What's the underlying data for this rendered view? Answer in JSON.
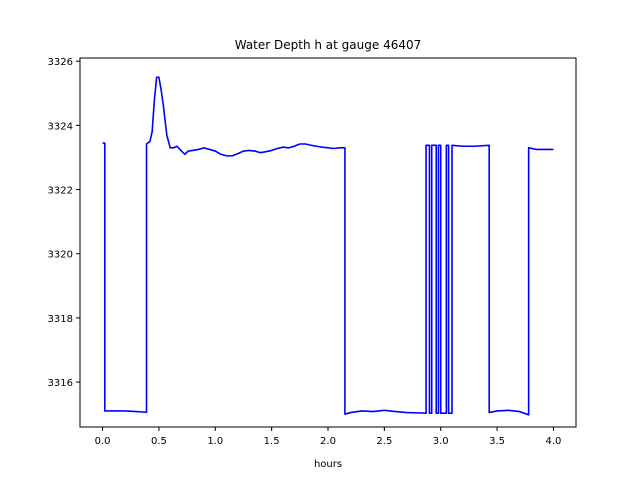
{
  "chart_data": {
    "type": "line",
    "title": "Water Depth h at gauge 46407",
    "xlabel": "hours",
    "ylabel": "",
    "xlim": [
      -0.2,
      4.2
    ],
    "ylim": [
      3314.6,
      3326.1
    ],
    "xticks": [
      0.0,
      0.5,
      1.0,
      1.5,
      2.0,
      2.5,
      3.0,
      3.5,
      4.0
    ],
    "xtick_labels": [
      "0.0",
      "0.5",
      "1.0",
      "1.5",
      "2.0",
      "2.5",
      "3.0",
      "3.5",
      "4.0"
    ],
    "yticks": [
      3316,
      3318,
      3320,
      3322,
      3324,
      3326
    ],
    "ytick_labels": [
      "3316",
      "3318",
      "3320",
      "3322",
      "3324",
      "3326"
    ],
    "grid": false,
    "series": [
      {
        "color": "#0000ff",
        "x": [
          0.0,
          0.02,
          0.02,
          0.1,
          0.2,
          0.3,
          0.39,
          0.39,
          0.42,
          0.44,
          0.46,
          0.48,
          0.5,
          0.52,
          0.54,
          0.57,
          0.6,
          0.63,
          0.66,
          0.7,
          0.73,
          0.76,
          0.8,
          0.85,
          0.9,
          0.95,
          1.0,
          1.05,
          1.1,
          1.15,
          1.2,
          1.25,
          1.3,
          1.35,
          1.4,
          1.45,
          1.5,
          1.55,
          1.6,
          1.65,
          1.7,
          1.75,
          1.8,
          1.85,
          1.9,
          1.95,
          2.0,
          2.05,
          2.1,
          2.15,
          2.15,
          2.2,
          2.3,
          2.4,
          2.5,
          2.6,
          2.7,
          2.8,
          2.87,
          2.87,
          2.9,
          2.9,
          2.92,
          2.92,
          2.96,
          2.96,
          2.98,
          2.98,
          3.0,
          3.0,
          3.05,
          3.05,
          3.07,
          3.07,
          3.1,
          3.1,
          3.2,
          3.3,
          3.43,
          3.43,
          3.5,
          3.6,
          3.7,
          3.78,
          3.78,
          3.85,
          4.0
        ],
        "y": [
          3323.45,
          3323.45,
          3315.1,
          3315.1,
          3315.1,
          3315.08,
          3315.06,
          3323.42,
          3323.5,
          3323.8,
          3324.8,
          3325.5,
          3325.5,
          3325.1,
          3324.6,
          3323.7,
          3323.3,
          3323.3,
          3323.35,
          3323.2,
          3323.1,
          3323.2,
          3323.22,
          3323.25,
          3323.3,
          3323.25,
          3323.2,
          3323.1,
          3323.05,
          3323.05,
          3323.12,
          3323.2,
          3323.22,
          3323.2,
          3323.15,
          3323.18,
          3323.22,
          3323.28,
          3323.32,
          3323.3,
          3323.35,
          3323.42,
          3323.42,
          3323.38,
          3323.35,
          3323.32,
          3323.3,
          3323.28,
          3323.3,
          3323.3,
          3315.0,
          3315.05,
          3315.1,
          3315.08,
          3315.12,
          3315.08,
          3315.05,
          3315.04,
          3315.03,
          3323.38,
          3323.38,
          3315.03,
          3315.03,
          3323.38,
          3323.38,
          3315.03,
          3315.03,
          3323.38,
          3323.38,
          3315.03,
          3315.03,
          3323.38,
          3323.38,
          3315.03,
          3315.03,
          3323.38,
          3323.35,
          3323.35,
          3323.38,
          3315.05,
          3315.1,
          3315.12,
          3315.08,
          3314.98,
          3323.3,
          3323.25,
          3323.25
        ]
      }
    ]
  }
}
